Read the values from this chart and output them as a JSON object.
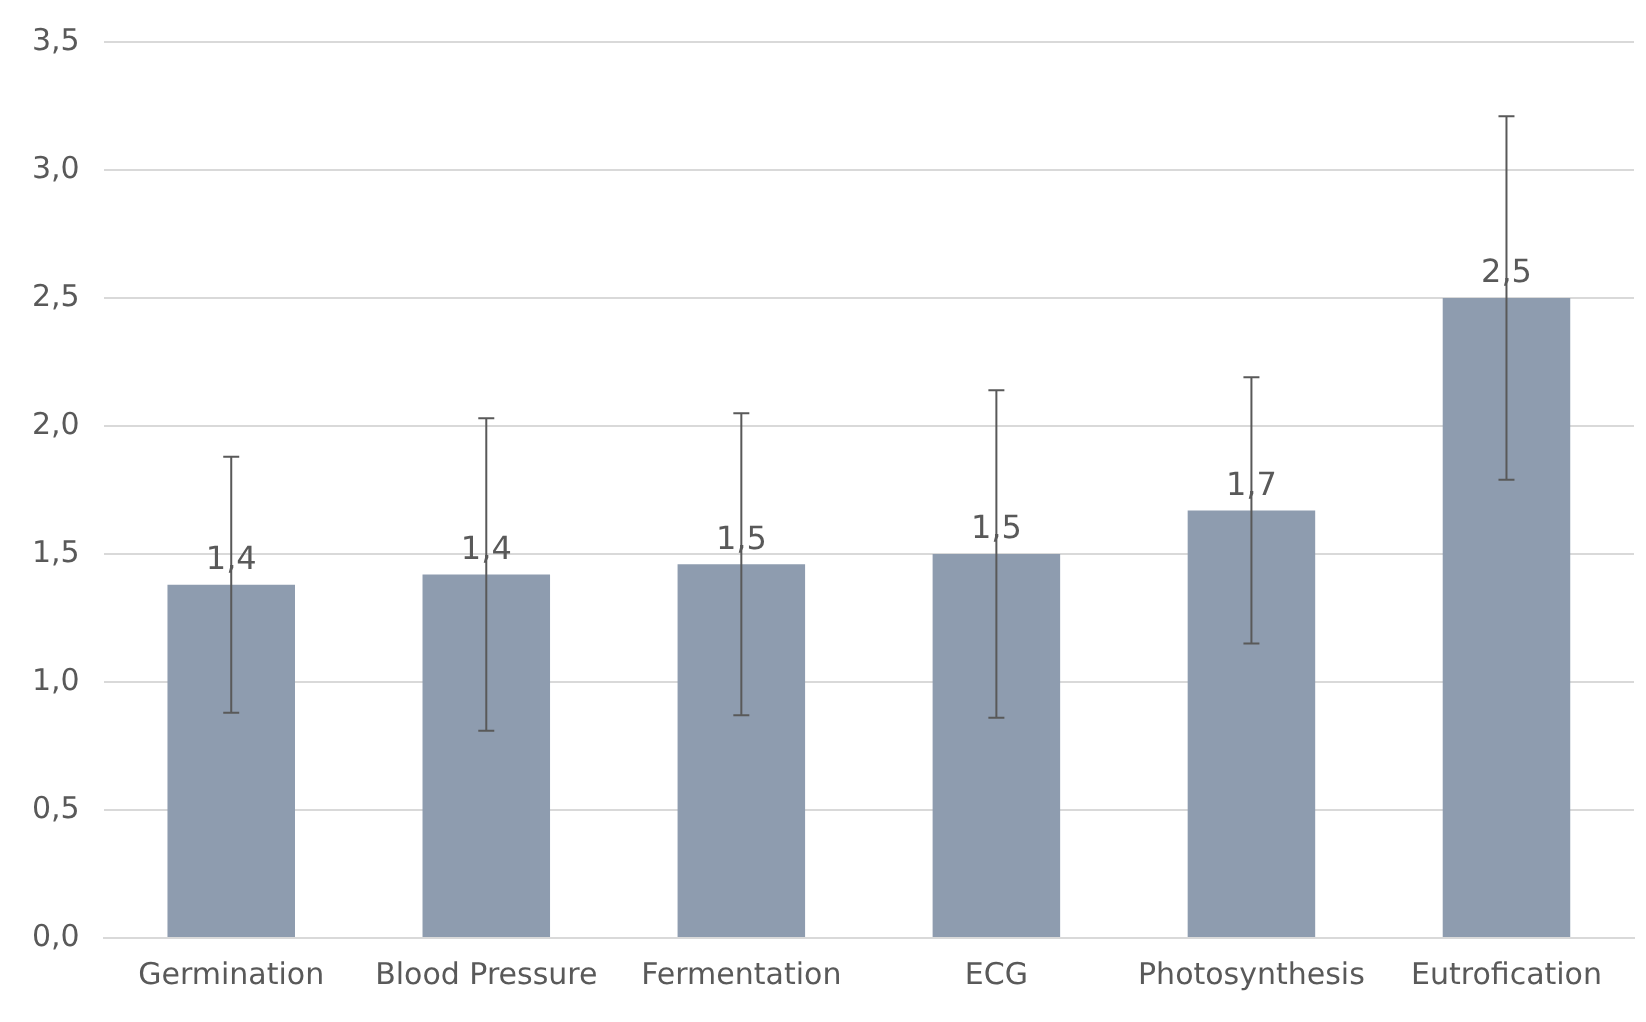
{
  "chart_data": {
    "type": "bar",
    "categories": [
      "Germination",
      "Blood Pressure",
      "Fermentation",
      "ECG",
      "Photosynthesis",
      "Eutrofication"
    ],
    "values": [
      1.38,
      1.42,
      1.46,
      1.5,
      1.67,
      2.5
    ],
    "errors": [
      0.5,
      0.61,
      0.59,
      0.64,
      0.52,
      0.71
    ],
    "value_labels": [
      "1,4",
      "1,4",
      "1,5",
      "1,5",
      "1,7",
      "2,5"
    ],
    "color": "#8e9caf",
    "ylim": [
      0,
      3.5
    ],
    "yticks": [
      {
        "value": 0,
        "label": "0,0"
      },
      {
        "value": 0.5,
        "label": "0,5"
      },
      {
        "value": 1,
        "label": "1,0"
      },
      {
        "value": 1.5,
        "label": "1,5"
      },
      {
        "value": 2,
        "label": "2,0"
      },
      {
        "value": 2.5,
        "label": "2,5"
      },
      {
        "value": 3,
        "label": "3,0"
      },
      {
        "value": 3.5,
        "label": "3,5"
      }
    ],
    "grid": "y",
    "legend": false
  }
}
